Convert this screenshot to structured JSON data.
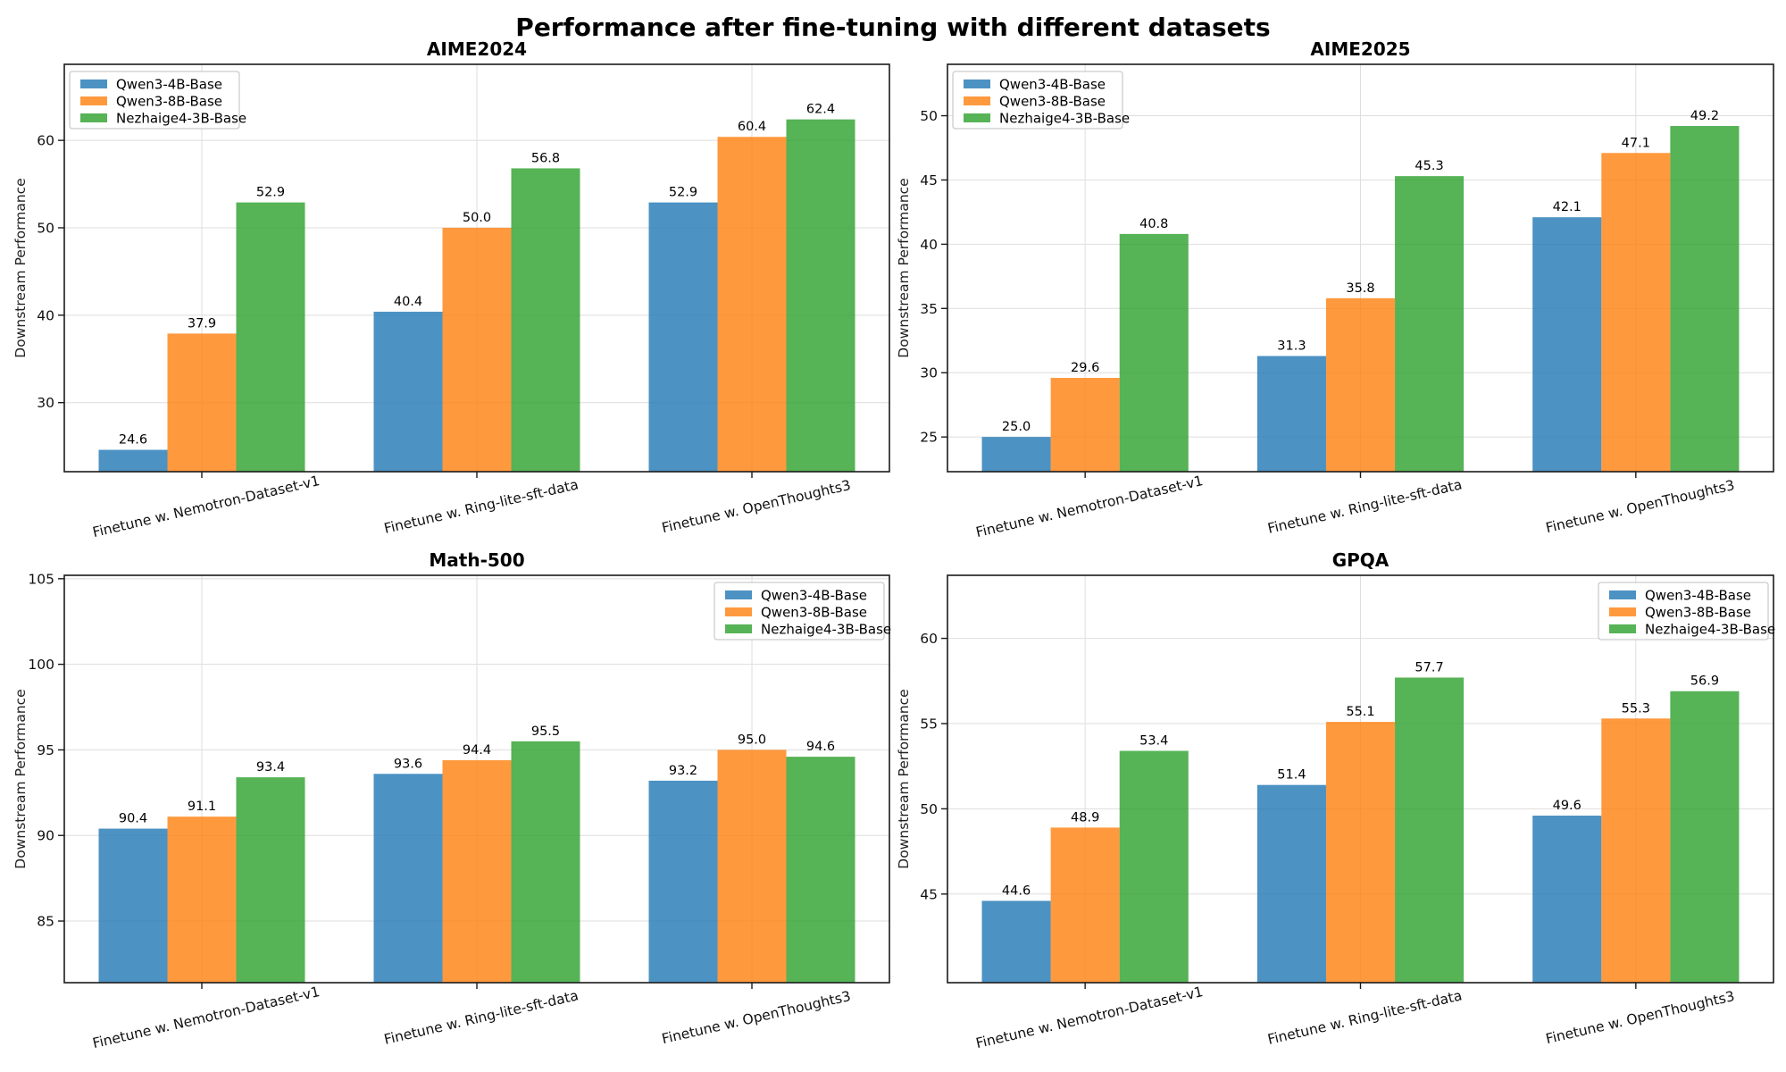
{
  "figure": {
    "title": "Performance after fine-tuning with different datasets",
    "background": "#ffffff"
  },
  "axis_style": {
    "grid_color": "#dedede",
    "spine_color": "#1a1a1a",
    "tick_color": "#1a1a1a",
    "legend_border_color": "#cccccc",
    "legend_fill": "#ffffff"
  },
  "chart_data": [
    {
      "type": "bar",
      "title": "AIME2024",
      "xlabel": "",
      "ylabel": "Downstream Performance",
      "categories": [
        "Finetune w. Nemotron-Dataset-v1",
        "Finetune w. Ring-lite-sft-data",
        "Finetune w. OpenThoughts3"
      ],
      "series": [
        {
          "name": "Qwen3-4B-Base",
          "color": "#1f77b4",
          "fill": "rgba(31,119,180,0.8)",
          "values": [
            24.6,
            40.4,
            52.9
          ]
        },
        {
          "name": "Qwen3-8B-Base",
          "color": "#ff7f0e",
          "fill": "rgba(255,127,14,0.8)",
          "values": [
            37.9,
            50.0,
            60.4
          ]
        },
        {
          "name": "Nezhaige4-3B-Base",
          "color": "#2ca02c",
          "fill": "rgba(44,160,44,0.8)",
          "values": [
            52.9,
            56.8,
            62.4
          ]
        }
      ],
      "yticks": [
        30,
        40,
        50,
        60
      ],
      "ylim": [
        22.1,
        68.7
      ],
      "legend_position": "upper left",
      "grid": true,
      "bar_labels": true
    },
    {
      "type": "bar",
      "title": "AIME2025",
      "xlabel": "",
      "ylabel": "Downstream Performance",
      "categories": [
        "Finetune w. Nemotron-Dataset-v1",
        "Finetune w. Ring-lite-sft-data",
        "Finetune w. OpenThoughts3"
      ],
      "series": [
        {
          "name": "Qwen3-4B-Base",
          "color": "#1f77b4",
          "fill": "rgba(31,119,180,0.8)",
          "values": [
            25.0,
            31.3,
            42.1
          ]
        },
        {
          "name": "Qwen3-8B-Base",
          "color": "#ff7f0e",
          "fill": "rgba(255,127,14,0.8)",
          "values": [
            29.6,
            35.8,
            47.1
          ]
        },
        {
          "name": "Nezhaige4-3B-Base",
          "color": "#2ca02c",
          "fill": "rgba(44,160,44,0.8)",
          "values": [
            40.8,
            45.3,
            49.2
          ]
        }
      ],
      "yticks": [
        25,
        30,
        35,
        40,
        45,
        50
      ],
      "ylim": [
        22.3,
        54.0
      ],
      "legend_position": "upper left",
      "grid": true,
      "bar_labels": true
    },
    {
      "type": "bar",
      "title": "Math-500",
      "xlabel": "",
      "ylabel": "Downstream Performance",
      "categories": [
        "Finetune w. Nemotron-Dataset-v1",
        "Finetune w. Ring-lite-sft-data",
        "Finetune w. OpenThoughts3"
      ],
      "series": [
        {
          "name": "Qwen3-4B-Base",
          "color": "#1f77b4",
          "fill": "rgba(31,119,180,0.8)",
          "values": [
            90.4,
            93.6,
            93.2
          ]
        },
        {
          "name": "Qwen3-8B-Base",
          "color": "#ff7f0e",
          "fill": "rgba(255,127,14,0.8)",
          "values": [
            91.1,
            94.4,
            95.0
          ]
        },
        {
          "name": "Nezhaige4-3B-Base",
          "color": "#2ca02c",
          "fill": "rgba(44,160,44,0.8)",
          "values": [
            93.4,
            95.5,
            94.6
          ]
        }
      ],
      "yticks": [
        85,
        90,
        95,
        100,
        105
      ],
      "ylim": [
        81.4,
        105.2
      ],
      "legend_position": "upper right",
      "grid": true,
      "bar_labels": true
    },
    {
      "type": "bar",
      "title": "GPQA",
      "xlabel": "",
      "ylabel": "Downstream Performance",
      "categories": [
        "Finetune w. Nemotron-Dataset-v1",
        "Finetune w. Ring-lite-sft-data",
        "Finetune w. OpenThoughts3"
      ],
      "series": [
        {
          "name": "Qwen3-4B-Base",
          "color": "#1f77b4",
          "fill": "rgba(31,119,180,0.8)",
          "values": [
            44.6,
            51.4,
            49.6
          ]
        },
        {
          "name": "Qwen3-8B-Base",
          "color": "#ff7f0e",
          "fill": "rgba(255,127,14,0.8)",
          "values": [
            48.9,
            55.1,
            55.3
          ]
        },
        {
          "name": "Nezhaige4-3B-Base",
          "color": "#2ca02c",
          "fill": "rgba(44,160,44,0.8)",
          "values": [
            53.4,
            57.7,
            56.9
          ]
        }
      ],
      "yticks": [
        45,
        50,
        55,
        60
      ],
      "ylim": [
        39.8,
        63.7
      ],
      "legend_position": "upper right",
      "grid": true,
      "bar_labels": true
    }
  ]
}
